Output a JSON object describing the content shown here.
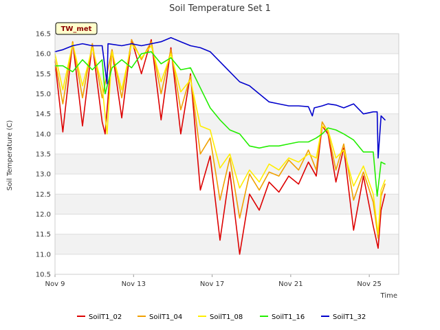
{
  "chart_data": {
    "type": "line",
    "title": "Soil Temperature Set 1",
    "xlabel": "Time",
    "ylabel": "Soil Temperature (C)",
    "badge": "TW_met",
    "xlim": [
      0,
      17.5
    ],
    "ylim": [
      10.5,
      16.5
    ],
    "x_ticks": [
      {
        "x": 0,
        "label": "Nov 9"
      },
      {
        "x": 4,
        "label": "Nov 13"
      },
      {
        "x": 8,
        "label": "Nov 17"
      },
      {
        "x": 12,
        "label": "Nov 21"
      },
      {
        "x": 16,
        "label": "Nov 25"
      }
    ],
    "y_ticks": [
      10.5,
      11.0,
      11.5,
      12.0,
      12.5,
      13.0,
      13.5,
      14.0,
      14.5,
      15.0,
      15.5,
      16.0,
      16.5
    ],
    "grid": true,
    "legend_position": "bottom",
    "series": [
      {
        "name": "SoilT1_02",
        "color": "#dd0000",
        "points": [
          [
            0,
            15.8
          ],
          [
            0.4,
            14.05
          ],
          [
            0.9,
            16.3
          ],
          [
            1.4,
            14.2
          ],
          [
            1.9,
            16.25
          ],
          [
            2.4,
            14.3
          ],
          [
            2.55,
            14.0
          ],
          [
            2.9,
            16.1
          ],
          [
            3.4,
            14.4
          ],
          [
            3.9,
            16.35
          ],
          [
            4.4,
            15.5
          ],
          [
            4.9,
            16.35
          ],
          [
            5.4,
            14.35
          ],
          [
            5.9,
            16.15
          ],
          [
            6.4,
            14.0
          ],
          [
            6.9,
            15.5
          ],
          [
            7.4,
            12.6
          ],
          [
            7.9,
            13.45
          ],
          [
            8.4,
            11.35
          ],
          [
            8.9,
            13.05
          ],
          [
            9.4,
            11.0
          ],
          [
            9.9,
            12.5
          ],
          [
            10.4,
            12.1
          ],
          [
            10.9,
            12.8
          ],
          [
            11.4,
            12.55
          ],
          [
            11.9,
            12.95
          ],
          [
            12.4,
            12.75
          ],
          [
            12.9,
            13.3
          ],
          [
            13.3,
            12.95
          ],
          [
            13.6,
            14.2
          ],
          [
            13.9,
            14.0
          ],
          [
            14.3,
            12.8
          ],
          [
            14.7,
            13.65
          ],
          [
            15.2,
            11.6
          ],
          [
            15.7,
            12.95
          ],
          [
            16.2,
            11.7
          ],
          [
            16.45,
            11.15
          ],
          [
            16.6,
            12.1
          ],
          [
            16.8,
            12.5
          ]
        ]
      },
      {
        "name": "SoilT1_04",
        "color": "#f0a000",
        "points": [
          [
            0,
            15.85
          ],
          [
            0.4,
            14.75
          ],
          [
            0.9,
            16.3
          ],
          [
            1.4,
            14.9
          ],
          [
            1.9,
            16.25
          ],
          [
            2.4,
            14.9
          ],
          [
            2.9,
            16.1
          ],
          [
            3.4,
            14.9
          ],
          [
            3.9,
            16.35
          ],
          [
            4.4,
            15.85
          ],
          [
            4.9,
            16.3
          ],
          [
            5.4,
            15.0
          ],
          [
            5.9,
            16.1
          ],
          [
            6.4,
            14.6
          ],
          [
            6.9,
            15.45
          ],
          [
            7.4,
            13.5
          ],
          [
            7.9,
            13.9
          ],
          [
            8.4,
            12.35
          ],
          [
            8.9,
            13.4
          ],
          [
            9.4,
            11.9
          ],
          [
            9.9,
            13.0
          ],
          [
            10.4,
            12.6
          ],
          [
            10.9,
            13.05
          ],
          [
            11.4,
            12.95
          ],
          [
            11.9,
            13.35
          ],
          [
            12.4,
            13.1
          ],
          [
            12.9,
            13.6
          ],
          [
            13.3,
            13.1
          ],
          [
            13.6,
            14.3
          ],
          [
            13.9,
            14.05
          ],
          [
            14.3,
            13.1
          ],
          [
            14.7,
            13.75
          ],
          [
            15.2,
            12.35
          ],
          [
            15.7,
            13.05
          ],
          [
            16.2,
            12.3
          ],
          [
            16.45,
            11.4
          ],
          [
            16.6,
            12.45
          ],
          [
            16.8,
            12.75
          ]
        ]
      },
      {
        "name": "SoilT1_08",
        "color": "#ffee00",
        "points": [
          [
            0,
            16.0
          ],
          [
            0.4,
            15.1
          ],
          [
            0.9,
            16.25
          ],
          [
            1.4,
            15.2
          ],
          [
            1.9,
            16.15
          ],
          [
            2.4,
            15.2
          ],
          [
            2.65,
            14.0
          ],
          [
            2.9,
            16.05
          ],
          [
            3.4,
            15.1
          ],
          [
            3.9,
            16.25
          ],
          [
            4.4,
            15.9
          ],
          [
            4.9,
            16.2
          ],
          [
            5.4,
            15.3
          ],
          [
            5.9,
            16.0
          ],
          [
            6.4,
            15.05
          ],
          [
            6.9,
            15.35
          ],
          [
            7.4,
            14.2
          ],
          [
            7.9,
            14.1
          ],
          [
            8.4,
            13.15
          ],
          [
            8.9,
            13.5
          ],
          [
            9.4,
            12.65
          ],
          [
            9.9,
            13.1
          ],
          [
            10.4,
            12.8
          ],
          [
            10.9,
            13.25
          ],
          [
            11.4,
            13.1
          ],
          [
            11.9,
            13.4
          ],
          [
            12.4,
            13.3
          ],
          [
            12.9,
            13.5
          ],
          [
            13.3,
            13.4
          ],
          [
            13.6,
            14.2
          ],
          [
            13.9,
            14.1
          ],
          [
            14.3,
            13.4
          ],
          [
            14.7,
            13.6
          ],
          [
            15.2,
            12.7
          ],
          [
            15.7,
            13.2
          ],
          [
            16.2,
            12.5
          ],
          [
            16.45,
            11.5
          ],
          [
            16.6,
            12.6
          ],
          [
            16.8,
            12.85
          ]
        ]
      },
      {
        "name": "SoilT1_16",
        "color": "#22ee00",
        "points": [
          [
            0,
            15.7
          ],
          [
            0.4,
            15.7
          ],
          [
            0.9,
            15.55
          ],
          [
            1.4,
            15.85
          ],
          [
            1.9,
            15.6
          ],
          [
            2.4,
            15.85
          ],
          [
            2.55,
            15.0
          ],
          [
            2.9,
            15.65
          ],
          [
            3.4,
            15.85
          ],
          [
            3.9,
            15.65
          ],
          [
            4.4,
            16.0
          ],
          [
            4.9,
            16.05
          ],
          [
            5.4,
            15.75
          ],
          [
            5.9,
            15.9
          ],
          [
            6.4,
            15.6
          ],
          [
            6.9,
            15.65
          ],
          [
            7.4,
            15.15
          ],
          [
            7.9,
            14.65
          ],
          [
            8.4,
            14.35
          ],
          [
            8.9,
            14.1
          ],
          [
            9.4,
            14.0
          ],
          [
            9.9,
            13.7
          ],
          [
            10.4,
            13.65
          ],
          [
            10.9,
            13.7
          ],
          [
            11.4,
            13.7
          ],
          [
            11.9,
            13.75
          ],
          [
            12.4,
            13.8
          ],
          [
            12.9,
            13.8
          ],
          [
            13.3,
            13.9
          ],
          [
            13.6,
            14.0
          ],
          [
            13.9,
            14.15
          ],
          [
            14.3,
            14.1
          ],
          [
            14.7,
            14.0
          ],
          [
            15.2,
            13.85
          ],
          [
            15.7,
            13.55
          ],
          [
            16.2,
            13.55
          ],
          [
            16.4,
            12.45
          ],
          [
            16.6,
            13.3
          ],
          [
            16.8,
            13.25
          ]
        ]
      },
      {
        "name": "SoilT1_32",
        "color": "#0000cc",
        "points": [
          [
            0,
            16.05
          ],
          [
            0.4,
            16.1
          ],
          [
            0.9,
            16.2
          ],
          [
            1.4,
            16.25
          ],
          [
            1.9,
            16.2
          ],
          [
            2.4,
            16.2
          ],
          [
            2.65,
            15.25
          ],
          [
            2.7,
            16.25
          ],
          [
            3.4,
            16.2
          ],
          [
            3.9,
            16.25
          ],
          [
            4.4,
            16.2
          ],
          [
            4.9,
            16.25
          ],
          [
            5.4,
            16.3
          ],
          [
            5.9,
            16.4
          ],
          [
            6.4,
            16.3
          ],
          [
            6.9,
            16.2
          ],
          [
            7.4,
            16.15
          ],
          [
            7.9,
            16.05
          ],
          [
            8.4,
            15.8
          ],
          [
            8.9,
            15.55
          ],
          [
            9.4,
            15.3
          ],
          [
            9.9,
            15.2
          ],
          [
            10.4,
            15.0
          ],
          [
            10.9,
            14.8
          ],
          [
            11.4,
            14.75
          ],
          [
            11.9,
            14.7
          ],
          [
            12.4,
            14.7
          ],
          [
            12.9,
            14.68
          ],
          [
            13.1,
            14.45
          ],
          [
            13.2,
            14.65
          ],
          [
            13.6,
            14.7
          ],
          [
            13.9,
            14.75
          ],
          [
            14.3,
            14.72
          ],
          [
            14.7,
            14.65
          ],
          [
            15.2,
            14.75
          ],
          [
            15.7,
            14.5
          ],
          [
            16.2,
            14.55
          ],
          [
            16.4,
            14.55
          ],
          [
            16.45,
            13.4
          ],
          [
            16.6,
            14.45
          ],
          [
            16.8,
            14.35
          ]
        ]
      }
    ]
  }
}
